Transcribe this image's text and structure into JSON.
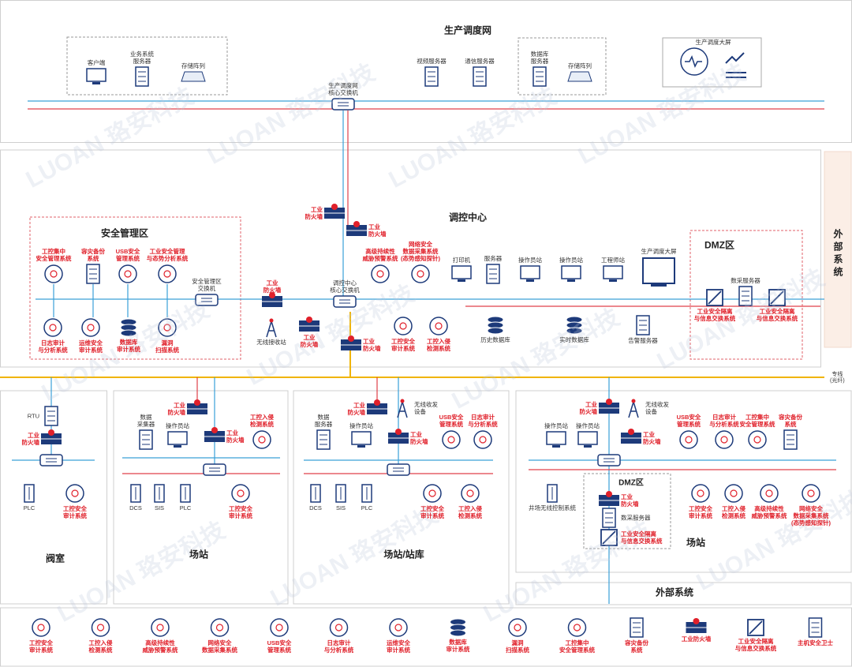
{
  "watermark": "LUOAN 珞安科技",
  "top": {
    "title": "生产调度网",
    "nodes": [
      {
        "label": "客户端"
      },
      {
        "label": "业务系统\n服务器"
      },
      {
        "label": "存储阵列"
      },
      {
        "label": "生产调度网\n核心交换机"
      },
      {
        "label": "视频服务器"
      },
      {
        "label": "通信服务器"
      },
      {
        "label": "数据库\n服务器"
      },
      {
        "label": "存储阵列"
      },
      {
        "label": "生产调度大屏"
      }
    ]
  },
  "center": {
    "title": "调控中心",
    "security_zone": {
      "title": "安全管理区",
      "nodes": [
        {
          "label": "工控集中\n安全管理系统"
        },
        {
          "label": "容灾备份\n系统"
        },
        {
          "label": "USB安全\n管理系统"
        },
        {
          "label": "工业安全管理\n与态势分析系统"
        },
        {
          "label": "日志审计\n与分析系统"
        },
        {
          "label": "运维安全\n审计系统"
        },
        {
          "label": "数据库\n审计系统"
        },
        {
          "label": "漏洞\n扫描系统"
        },
        {
          "label": "安全管理区\n交换机"
        }
      ]
    },
    "nodes": [
      {
        "label": "工业\n防火墙"
      },
      {
        "label": "工业\n防火墙"
      },
      {
        "label": "工业\n防火墙"
      },
      {
        "label": "调控中心\n核心交换机"
      },
      {
        "label": "高级持续性\n威胁预警系统"
      },
      {
        "label": "网络安全\n数据采集系统\n(态势感知探针)"
      },
      {
        "label": "打印机"
      },
      {
        "label": "服务器"
      },
      {
        "label": "操作员站"
      },
      {
        "label": "操作员站"
      },
      {
        "label": "工程师站"
      },
      {
        "label": "生产调度大屏"
      },
      {
        "label": "无线接收站"
      },
      {
        "label": "工业\n防火墙"
      },
      {
        "label": "工业\n防火墙"
      },
      {
        "label": "工控安全\n审计系统"
      },
      {
        "label": "工控入侵\n检测系统"
      },
      {
        "label": "历史数据库"
      },
      {
        "label": "实时数据库"
      },
      {
        "label": "告警服务器"
      }
    ],
    "dmz": {
      "title": "DMZ区",
      "nodes": [
        {
          "label": "数采服务器"
        },
        {
          "label": "工业安全隔离\n与信息交换系统"
        },
        {
          "label": "工业安全隔离\n与信息交换系统"
        }
      ]
    },
    "external": "外部系统",
    "dedicated_line": "专线\n(光纤)"
  },
  "sites": [
    {
      "title": "阀室",
      "nodes": [
        {
          "label": "RTU"
        },
        {
          "label": "工业\n防火墙"
        },
        {
          "label": "PLC"
        },
        {
          "label": "工控安全\n审计系统"
        }
      ]
    },
    {
      "title": "场站",
      "nodes": [
        {
          "label": "工业\n防火墙"
        },
        {
          "label": "数据\n采集器"
        },
        {
          "label": "操作员站"
        },
        {
          "label": "工业\n防火墙"
        },
        {
          "label": "工控入侵\n检测系统"
        },
        {
          "label": "DCS"
        },
        {
          "label": "SIS"
        },
        {
          "label": "PLC"
        },
        {
          "label": "工控安全\n审计系统"
        }
      ]
    },
    {
      "title": "场站/站库",
      "nodes": [
        {
          "label": "工业\n防火墙"
        },
        {
          "label": "无线收发\n设备"
        },
        {
          "label": "数据\n服务器"
        },
        {
          "label": "操作员站"
        },
        {
          "label": "工业\n防火墙"
        },
        {
          "label": "USB安全\n管理系统"
        },
        {
          "label": "日志审计\n与分析系统"
        },
        {
          "label": "DCS"
        },
        {
          "label": "SIS"
        },
        {
          "label": "PLC"
        },
        {
          "label": "工控安全\n审计系统"
        },
        {
          "label": "工控入侵\n检测系统"
        }
      ]
    },
    {
      "title": "场站",
      "nodes": [
        {
          "label": "工业\n防火墙"
        },
        {
          "label": "无线收发\n设备"
        },
        {
          "label": "操作员站"
        },
        {
          "label": "操作员站"
        },
        {
          "label": "工业\n防火墙"
        },
        {
          "label": "USB安全\n管理系统"
        },
        {
          "label": "日志审计\n与分析系统"
        },
        {
          "label": "工控集中\n安全管理系统"
        },
        {
          "label": "容灾备份\n系统"
        },
        {
          "label": "井场无线控制系统"
        },
        {
          "label": "工控安全\n审计系统"
        },
        {
          "label": "工控入侵\n检测系统"
        },
        {
          "label": "高级持续性\n威胁预警系统"
        },
        {
          "label": "网络安全\n数据采集系统\n(态势感知探针)"
        }
      ],
      "dmz": {
        "title": "DMZ区",
        "nodes": [
          {
            "label": "工业\n防火墙"
          },
          {
            "label": "数采服务器"
          },
          {
            "label": "工业安全隔离\n与信息交换系统"
          }
        ]
      }
    }
  ],
  "external_bottom": "外部系统",
  "legend": [
    {
      "label": "工控安全\n审计系统"
    },
    {
      "label": "工控入侵\n检测系统"
    },
    {
      "label": "高级持续性\n威胁预警系统"
    },
    {
      "label": "网络安全\n数据采集系统"
    },
    {
      "label": "USB安全\n管理系统"
    },
    {
      "label": "日志审计\n与分析系统"
    },
    {
      "label": "运维安全\n审计系统"
    },
    {
      "label": "数据库\n审计系统"
    },
    {
      "label": "漏洞\n扫描系统"
    },
    {
      "label": "工控集中\n安全管理系统"
    },
    {
      "label": "容灾备份\n系统"
    },
    {
      "label": "工业防火墙"
    },
    {
      "label": "工业安全隔离\n与信息交换系统"
    },
    {
      "label": "主机安全卫士"
    }
  ]
}
